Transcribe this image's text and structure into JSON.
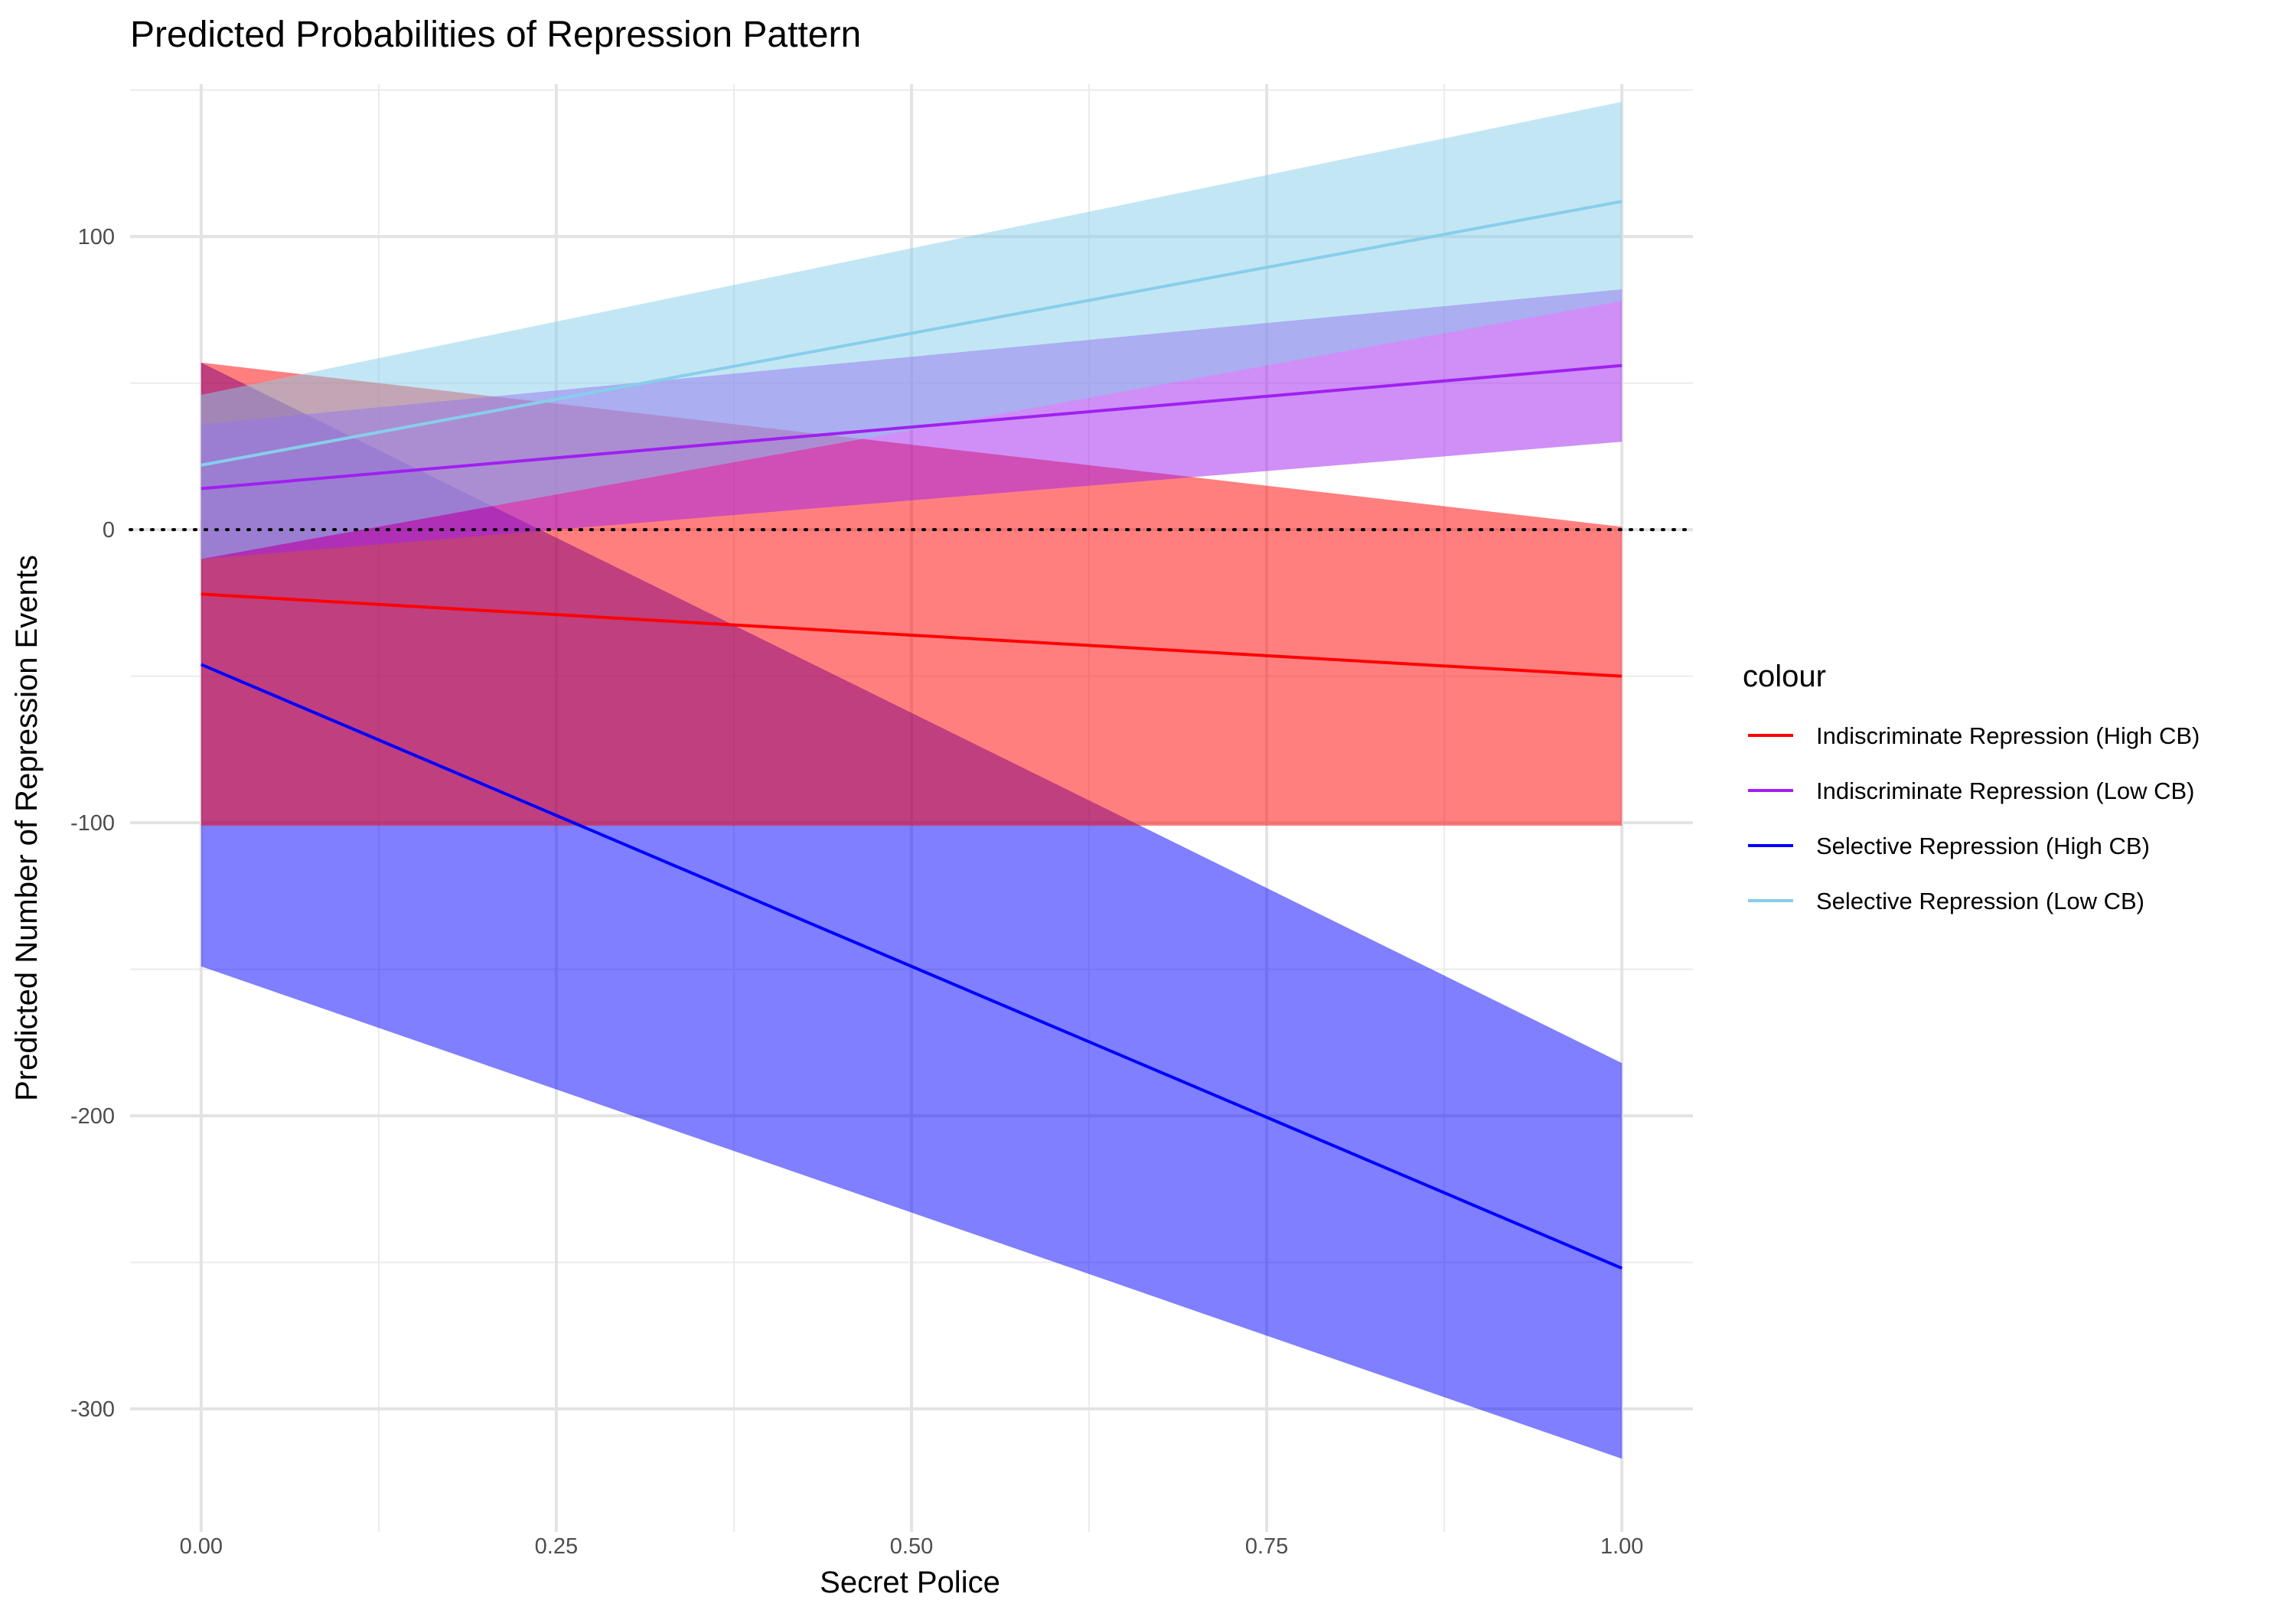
{
  "chart_data": {
    "type": "line",
    "title": "Predicted Probabilities of Repression Pattern",
    "xlabel": "Secret Police",
    "ylabel": "Predicted Number of Repression Events",
    "xlim": [
      -0.05,
      1.05
    ],
    "ylim": [
      -342,
      152
    ],
    "x_ticks": [
      0.0,
      0.25,
      0.5,
      0.75,
      1.0
    ],
    "x_tick_labels": [
      "0.00",
      "0.25",
      "0.50",
      "0.75",
      "1.00"
    ],
    "x_minor_ticks": [
      0.125,
      0.375,
      0.625,
      0.875
    ],
    "y_ticks": [
      -300,
      -200,
      -100,
      0,
      100
    ],
    "y_tick_labels": [
      "-300",
      "-200",
      "-100",
      "0",
      "100"
    ],
    "y_minor_ticks": [
      -250,
      -150,
      -50,
      50,
      150
    ],
    "reference_line": {
      "y": 0,
      "style": "dotted",
      "color": "#000000"
    },
    "grid": true,
    "legend_title": "colour",
    "legend_position": "right",
    "series": [
      {
        "name": "Selective Repression (High CB)",
        "color": "#0000ff",
        "ribbon_color": "#0000ff",
        "x": [
          0,
          1
        ],
        "y": [
          -46,
          -252
        ],
        "lower": [
          -149,
          -317
        ],
        "upper": [
          57,
          -182
        ]
      },
      {
        "name": "Indiscriminate Repression (High CB)",
        "color": "#ff0000",
        "ribbon_color": "#ff0000",
        "x": [
          0,
          1
        ],
        "y": [
          -22,
          -50
        ],
        "lower": [
          -101,
          -101
        ],
        "upper": [
          57,
          1
        ]
      },
      {
        "name": "Indiscriminate Repression (Low CB)",
        "color": "#a020f0",
        "ribbon_color": "#a020f0",
        "x": [
          0,
          1
        ],
        "y": [
          14,
          56
        ],
        "lower": [
          -10,
          30
        ],
        "upper": [
          36,
          82
        ]
      },
      {
        "name": "Selective Repression (Low CB)",
        "color": "#87ceeb",
        "ribbon_color": "#87ceeb",
        "x": [
          0,
          1
        ],
        "y": [
          22,
          112
        ],
        "lower": [
          -10,
          78
        ],
        "upper": [
          46,
          146
        ]
      }
    ],
    "legend_order": [
      "Indiscriminate Repression (High CB)",
      "Indiscriminate Repression (Low CB)",
      "Selective Repression (High CB)",
      "Selective Repression (Low CB)"
    ]
  }
}
